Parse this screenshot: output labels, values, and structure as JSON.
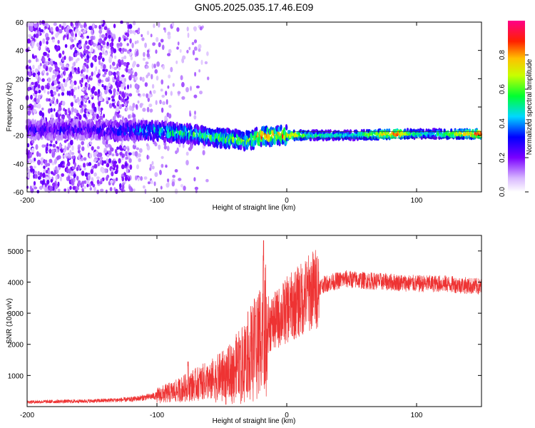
{
  "title": "GN05.2025.035.17.46.E09",
  "chart_data": [
    {
      "type": "heatmap",
      "xlabel": "Height of straight line (km)",
      "ylabel": "Frequency (Hz)",
      "xlim": [
        -200,
        150
      ],
      "ylim": [
        -60,
        60
      ],
      "xticks": [
        -200,
        -100,
        0,
        100
      ],
      "yticks": [
        60,
        40,
        20,
        0,
        -20,
        -40,
        -60
      ],
      "xtick_labels": [
        "-200",
        "-100",
        "0",
        "100"
      ],
      "ytick_labels": [
        "60",
        "40",
        "20",
        "0",
        "-20",
        "-40",
        "-60"
      ],
      "colorbar": {
        "label": "Normalized spectral amplitude",
        "range": [
          0.0,
          1.0
        ],
        "ticks": [
          0.0,
          0.2,
          0.4,
          0.6,
          0.8
        ],
        "tick_labels": [
          "0.0",
          "0.2",
          "0.4",
          "0.6",
          "0.8"
        ]
      },
      "signal_track": {
        "x": [
          -200,
          -150,
          -100,
          -75,
          -50,
          -30,
          -20,
          0,
          20,
          50,
          85,
          95,
          110,
          150
        ],
        "freq": [
          -16,
          -16,
          -17,
          -19,
          -22,
          -24,
          -21,
          -20,
          -20,
          -20,
          -19,
          -19,
          -19,
          -19
        ],
        "amplitude": [
          0.3,
          0.3,
          0.55,
          0.6,
          0.65,
          0.7,
          0.92,
          0.85,
          0.55,
          0.5,
          0.95,
          0.6,
          0.5,
          0.95
        ]
      },
      "background_noise": {
        "dense_x": [
          -200,
          -120
        ],
        "sparse_x": [
          -120,
          -60
        ]
      }
    },
    {
      "type": "line",
      "xlabel": "Height of straight line (km)",
      "ylabel": "SNR (10 * v/v)",
      "xlim": [
        -200,
        150
      ],
      "ylim": [
        0,
        5500
      ],
      "xticks": [
        -200,
        -100,
        0,
        100
      ],
      "yticks": [
        1000,
        2000,
        3000,
        4000,
        5000
      ],
      "xtick_labels": [
        "-200",
        "-100",
        "0",
        "100"
      ],
      "ytick_labels": [
        "1000",
        "2000",
        "3000",
        "4000",
        "5000"
      ],
      "color": "#ee3333",
      "envelope": {
        "x": [
          -200,
          -150,
          -120,
          -100,
          -85,
          -75,
          -60,
          -45,
          -35,
          -25,
          -18,
          -10,
          0,
          10,
          20,
          30,
          45,
          60,
          80,
          100,
          120,
          150
        ],
        "y": [
          150,
          180,
          230,
          350,
          500,
          650,
          850,
          1100,
          1500,
          2000,
          2600,
          2700,
          3100,
          3400,
          3750,
          3950,
          4100,
          4050,
          4000,
          3950,
          3950,
          3850
        ]
      },
      "spikes": [
        {
          "x": -18,
          "y": 5500
        },
        {
          "x": -24,
          "y": 3300
        },
        {
          "x": -36,
          "y": 2200
        },
        {
          "x": -76,
          "y": 1500
        }
      ]
    }
  ]
}
